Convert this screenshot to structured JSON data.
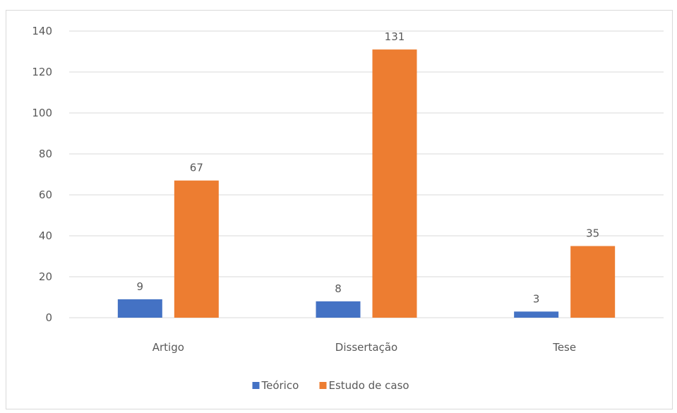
{
  "chart_data": {
    "type": "bar",
    "title": "",
    "xlabel": "",
    "ylabel": "",
    "categories": [
      "Artigo",
      "Dissertação",
      "Tese"
    ],
    "series": [
      {
        "name": "Teórico",
        "values": [
          9,
          8,
          3
        ],
        "color": "#4472C4"
      },
      {
        "name": "Estudo de caso",
        "values": [
          67,
          131,
          35
        ],
        "color": "#ED7D31"
      }
    ],
    "ylim": [
      0,
      140
    ],
    "yticks": [
      0,
      20,
      40,
      60,
      80,
      100,
      120,
      140
    ],
    "grid": true,
    "gridline_color": "#d9d9d9",
    "legend_position": "bottom",
    "data_labels": true
  }
}
